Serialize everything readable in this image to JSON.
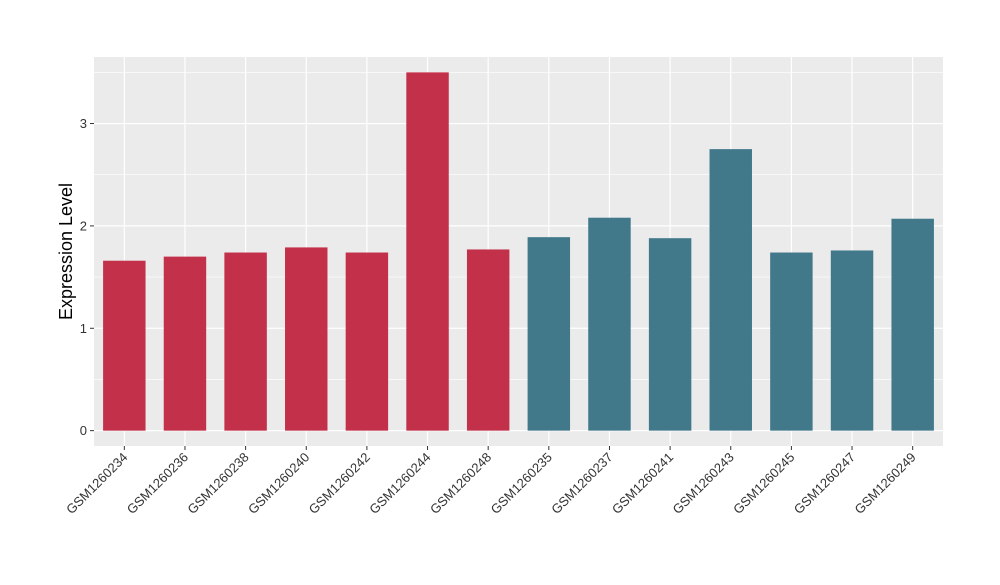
{
  "chart_data": {
    "type": "bar",
    "title": "",
    "xlabel": "",
    "ylabel": "Expression Level",
    "ylim": [
      -0.15,
      3.65
    ],
    "yticks": [
      0,
      1,
      2,
      3
    ],
    "grid": true,
    "legend": "none",
    "categories": [
      "GSM1260234",
      "GSM1260236",
      "GSM1260238",
      "GSM1260240",
      "GSM1260242",
      "GSM1260244",
      "GSM1260248",
      "GSM1260235",
      "GSM1260237",
      "GSM1260241",
      "GSM1260243",
      "GSM1260245",
      "GSM1260247",
      "GSM1260249"
    ],
    "values": [
      1.66,
      1.7,
      1.74,
      1.79,
      1.74,
      3.5,
      1.77,
      1.89,
      2.08,
      1.88,
      2.75,
      1.74,
      1.76,
      2.07
    ],
    "groups": [
      "a",
      "a",
      "a",
      "a",
      "a",
      "a",
      "a",
      "b",
      "b",
      "b",
      "b",
      "b",
      "b",
      "b"
    ],
    "colors": {
      "a": "#c33049",
      "b": "#41788a"
    },
    "panel_background": "#ebebeb",
    "grid_color": "#ffffff"
  }
}
